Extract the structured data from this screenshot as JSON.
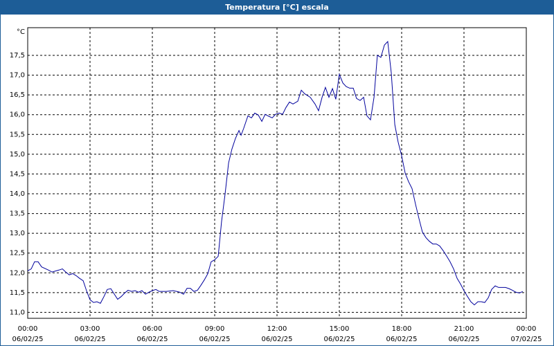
{
  "chart_data": {
    "type": "line",
    "title": "Temperatura [°C] escala",
    "ylabel": "°C",
    "color": "#00009c",
    "grid": true,
    "xlim": [
      0,
      24
    ],
    "ylim": [
      10.85,
      18.2
    ],
    "xticks": [
      {
        "value": 0,
        "label": "00:00",
        "date": "06/02/25"
      },
      {
        "value": 3,
        "label": "03:00",
        "date": "06/02/25"
      },
      {
        "value": 6,
        "label": "06:00",
        "date": "06/02/25"
      },
      {
        "value": 9,
        "label": "09:00",
        "date": "06/02/25"
      },
      {
        "value": 12,
        "label": "12:00",
        "date": "06/02/25"
      },
      {
        "value": 15,
        "label": "15:00",
        "date": "06/02/25"
      },
      {
        "value": 18,
        "label": "18:00",
        "date": "06/02/25"
      },
      {
        "value": 21,
        "label": "21:00",
        "date": "06/02/25"
      },
      {
        "value": 24,
        "label": "00:00",
        "date": "07/02/25"
      }
    ],
    "yticks": [
      {
        "value": 11,
        "label": "11,0"
      },
      {
        "value": 11.5,
        "label": "11,5"
      },
      {
        "value": 12,
        "label": "12,0"
      },
      {
        "value": 12.5,
        "label": "12,5"
      },
      {
        "value": 13,
        "label": "13,0"
      },
      {
        "value": 13.5,
        "label": "13,5"
      },
      {
        "value": 14,
        "label": "14,0"
      },
      {
        "value": 14.5,
        "label": "14,5"
      },
      {
        "value": 15,
        "label": "15,0"
      },
      {
        "value": 15.5,
        "label": "15,5"
      },
      {
        "value": 16,
        "label": "16,0"
      },
      {
        "value": 16.5,
        "label": "16,5"
      },
      {
        "value": 17,
        "label": "17,0"
      },
      {
        "value": 17.5,
        "label": "17,5"
      }
    ],
    "x": [
      0,
      0.17,
      0.33,
      0.5,
      0.67,
      1,
      1.17,
      1.5,
      1.67,
      1.83,
      2,
      2.17,
      2.33,
      2.5,
      2.67,
      2.83,
      3,
      3.17,
      3.33,
      3.5,
      3.67,
      3.83,
      4,
      4.17,
      4.33,
      4.5,
      4.67,
      4.83,
      5,
      5.17,
      5.33,
      5.5,
      5.67,
      5.83,
      6,
      6.17,
      6.33,
      6.67,
      7,
      7.17,
      7.33,
      7.5,
      7.67,
      7.83,
      8,
      8.17,
      8.33,
      8.5,
      8.67,
      8.83,
      9,
      9.17,
      9.33,
      9.5,
      9.67,
      9.83,
      10,
      10.17,
      10.27,
      10.4,
      10.6,
      10.77,
      10.93,
      11.1,
      11.27,
      11.43,
      11.6,
      11.77,
      11.93,
      12.1,
      12.27,
      12.43,
      12.6,
      12.77,
      13,
      13.17,
      13.33,
      13.6,
      13.83,
      14,
      14.17,
      14.33,
      14.5,
      14.67,
      14.83,
      15,
      15.17,
      15.33,
      15.5,
      15.67,
      15.83,
      16,
      16.17,
      16.33,
      16.5,
      16.67,
      16.83,
      17,
      17.17,
      17.33,
      17.5,
      17.67,
      17.83,
      18,
      18.17,
      18.33,
      18.5,
      18.67,
      18.83,
      19,
      19.17,
      19.33,
      19.5,
      19.67,
      19.83,
      20,
      20.17,
      20.33,
      20.5,
      20.67,
      20.83,
      21,
      21.17,
      21.33,
      21.5,
      21.67,
      21.83,
      22,
      22.17,
      22.33,
      22.5,
      22.67,
      22.83,
      23,
      23.17,
      23.33,
      23.5,
      23.67,
      23.83
    ],
    "values": [
      12.05,
      12.1,
      12.28,
      12.28,
      12.15,
      12.07,
      12.02,
      12.07,
      12.1,
      12.02,
      11.95,
      11.98,
      11.93,
      11.86,
      11.8,
      11.55,
      11.32,
      11.25,
      11.27,
      11.23,
      11.4,
      11.58,
      11.6,
      11.46,
      11.33,
      11.4,
      11.49,
      11.56,
      11.53,
      11.55,
      11.51,
      11.55,
      11.46,
      11.51,
      11.55,
      11.58,
      11.53,
      11.53,
      11.55,
      11.53,
      11.51,
      11.46,
      11.61,
      11.61,
      11.53,
      11.56,
      11.68,
      11.82,
      11.98,
      12.28,
      12.33,
      12.42,
      13.29,
      13.99,
      14.78,
      15.13,
      15.4,
      15.6,
      15.48,
      15.66,
      15.97,
      15.92,
      16.04,
      15.99,
      15.83,
      16.01,
      15.96,
      15.92,
      16.01,
      16.04,
      16.01,
      16.18,
      16.32,
      16.27,
      16.34,
      16.62,
      16.53,
      16.44,
      16.27,
      16.1,
      16.44,
      16.69,
      16.44,
      16.66,
      16.39,
      17.02,
      16.8,
      16.71,
      16.67,
      16.67,
      16.41,
      16.36,
      16.44,
      15.97,
      15.87,
      16.44,
      17.5,
      17.45,
      17.76,
      17.85,
      17.06,
      15.75,
      15.31,
      14.96,
      14.52,
      14.31,
      14.13,
      13.73,
      13.38,
      13.03,
      12.89,
      12.8,
      12.73,
      12.73,
      12.68,
      12.56,
      12.42,
      12.28,
      12.1,
      11.86,
      11.72,
      11.55,
      11.4,
      11.27,
      11.19,
      11.27,
      11.27,
      11.25,
      11.37,
      11.58,
      11.67,
      11.63,
      11.63,
      11.63,
      11.6,
      11.56,
      11.51,
      11.49,
      11.53
    ]
  }
}
